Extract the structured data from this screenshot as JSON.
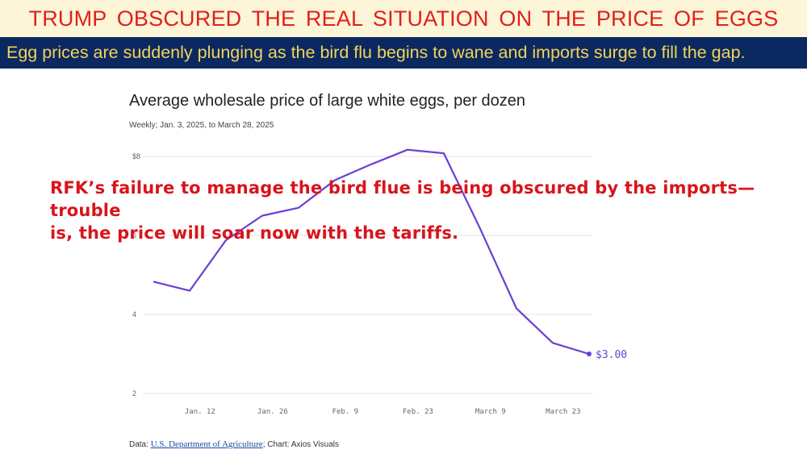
{
  "headline": "TRUMP OBSCURED THE REAL SITUATION ON THE PRICE OF EGGS",
  "subheadline": "Egg prices are suddenly plunging as the bird flu begins to wane and imports surge to fill the gap.",
  "annotation": {
    "line1": "RFK’s failure to manage the bird flue is being obscured by the imports—  trouble",
    "line2": "is, the price will soar now with the tariffs."
  },
  "source": {
    "prefix": "Data: ",
    "link": "U.S. Department of Agriculture",
    "suffix": "; Chart: Axios Visuals"
  },
  "colors": {
    "line": "#6a3fd4",
    "headline": "#e0201b",
    "banner": "#0b2960",
    "banner_text": "#f4d25a",
    "annotation": "#d9141b"
  },
  "chart_data": {
    "type": "line",
    "title": "Average wholesale price of large white eggs, per dozen",
    "subtitle": "Weekly; Jan. 3, 2025, to March 28, 2025",
    "x": [
      "2025-01-03",
      "2025-01-10",
      "2025-01-17",
      "2025-01-24",
      "2025-01-31",
      "2025-02-07",
      "2025-02-14",
      "2025-02-21",
      "2025-02-28",
      "2025-03-07",
      "2025-03-14",
      "2025-03-21",
      "2025-03-28"
    ],
    "values": [
      4.83,
      4.6,
      5.88,
      6.5,
      6.7,
      7.4,
      7.8,
      8.17,
      8.08,
      6.17,
      4.15,
      3.28,
      3.0
    ],
    "ylim": [
      2,
      8
    ],
    "yticks": [
      {
        "value": 8,
        "label": "$8"
      },
      {
        "value": 6,
        "label": "6"
      },
      {
        "value": 4,
        "label": "4"
      },
      {
        "value": 2,
        "label": "2"
      }
    ],
    "xticks": [
      {
        "date": "2025-01-12",
        "label": "Jan. 12"
      },
      {
        "date": "2025-01-26",
        "label": "Jan. 26"
      },
      {
        "date": "2025-02-09",
        "label": "Feb. 9"
      },
      {
        "date": "2025-02-23",
        "label": "Feb. 23"
      },
      {
        "date": "2025-03-09",
        "label": "March 9"
      },
      {
        "date": "2025-03-23",
        "label": "March 23"
      }
    ],
    "end_label": "$3.00",
    "grid": true
  }
}
